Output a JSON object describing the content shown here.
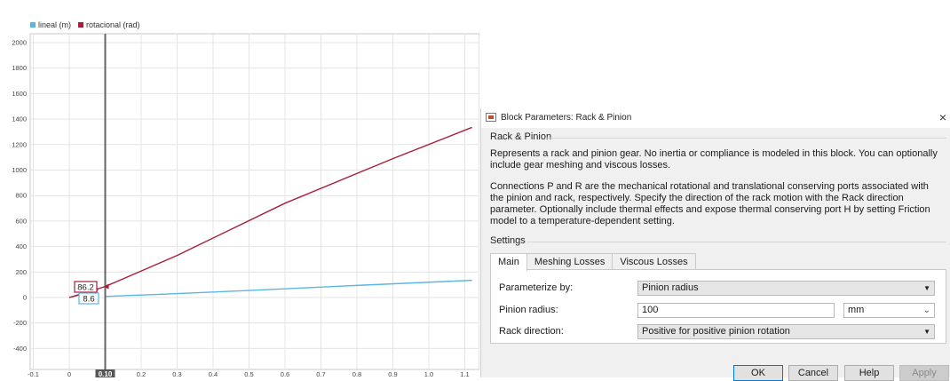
{
  "scope": {
    "legend": [
      {
        "label": "lineal (m)",
        "color": "#5bb6e3"
      },
      {
        "label": "rotacional (rad)",
        "color": "#a52038"
      }
    ],
    "y_ticks": [
      "2000",
      "1800",
      "1600",
      "1400",
      "1200",
      "1000",
      "800",
      "600",
      "400",
      "200",
      "0",
      "-200",
      "-400"
    ],
    "x_ticks": [
      "-0.1",
      "0",
      "0.1",
      "0.2",
      "0.3",
      "0.4",
      "0.5",
      "0.6",
      "0.7",
      "0.8",
      "0.9",
      "1.0",
      "1.1"
    ],
    "cursor_label": "0.10",
    "cursor_value_rot": "86.2",
    "cursor_value_lin": "8.6",
    "grid_color": "#e4e4e4",
    "cursor_color": "#666666"
  },
  "chart_data": {
    "type": "line",
    "xlim": [
      -0.1,
      1.12
    ],
    "ylim": [
      -500,
      2100
    ],
    "grid": true,
    "legend_placement": "top-left",
    "series": [
      {
        "name": "lineal (m)",
        "color": "#5bb6e3",
        "x": [
          0.1,
          0.25,
          0.5,
          0.8,
          1.12
        ],
        "y": [
          8.6,
          25,
          55,
          95,
          135
        ]
      },
      {
        "name": "rotacional (rad)",
        "color": "#a52038",
        "x": [
          0.0,
          0.1,
          0.3,
          0.6,
          0.9,
          1.12
        ],
        "y": [
          0,
          86.2,
          330,
          740,
          1090,
          1335
        ]
      }
    ]
  },
  "dialog": {
    "title": "Block Parameters: Rack & Pinion",
    "block_name": "Rack & Pinion",
    "desc1": "Represents a rack and pinion gear. No inertia or compliance is modeled in this block. You can optionally include gear meshing and viscous losses.",
    "desc2": "Connections P and R are the mechanical rotational and translational conserving ports associated with the pinion and rack, respectively. Specify the direction of the rack motion with the Rack direction parameter. Optionally include thermal effects and expose thermal conserving port H by setting Friction model to a temperature-dependent setting.",
    "settings_label": "Settings",
    "tabs": [
      "Main",
      "Meshing Losses",
      "Viscous Losses"
    ],
    "params": {
      "parameterize_label": "Parameterize by:",
      "parameterize_value": "Pinion radius",
      "radius_label": "Pinion radius:",
      "radius_value": "100",
      "radius_unit": "mm",
      "direction_label": "Rack direction:",
      "direction_value": "Positive for positive pinion rotation"
    },
    "buttons": {
      "ok": "OK",
      "cancel": "Cancel",
      "help": "Help",
      "apply": "Apply"
    },
    "close_glyph": "×",
    "arrow_glyph": "▼",
    "chevron_glyph": "⌄"
  }
}
